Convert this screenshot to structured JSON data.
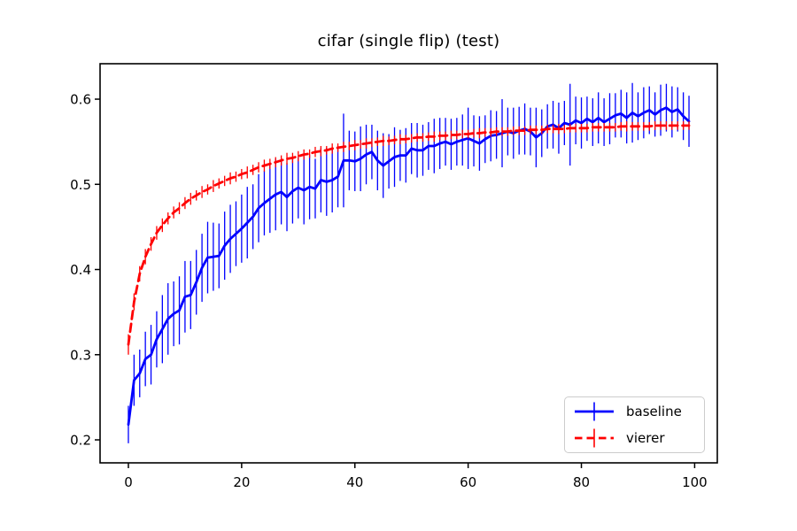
{
  "figure": {
    "title": "cifar (single flip) (test)",
    "background_color": "#ffffff"
  },
  "legend": {
    "position": "lower right",
    "items": [
      {
        "label": "baseline",
        "color": "#0000ff",
        "linestyle": "solid"
      },
      {
        "label": "vierer",
        "color": "#ff0000",
        "linestyle": "dashed"
      }
    ]
  },
  "chart_data": {
    "type": "line",
    "title": "cifar (single flip) (test)",
    "xlabel": "",
    "ylabel": "",
    "grid": false,
    "error_bars": true,
    "xlim": [
      -5,
      104
    ],
    "ylim": [
      0.173,
      0.6416
    ],
    "xticks": [
      0,
      20,
      40,
      60,
      80,
      100
    ],
    "xticklabels": [
      "0",
      "20",
      "40",
      "60",
      "80",
      "100"
    ],
    "yticks": [
      0.2,
      0.3,
      0.4,
      0.5,
      0.6
    ],
    "yticklabels": [
      "0.2",
      "0.3",
      "0.4",
      "0.5",
      "0.6"
    ],
    "x": [
      0,
      1,
      2,
      3,
      4,
      5,
      6,
      7,
      8,
      9,
      10,
      11,
      12,
      13,
      14,
      15,
      16,
      17,
      18,
      19,
      20,
      21,
      22,
      23,
      24,
      25,
      26,
      27,
      28,
      29,
      30,
      31,
      32,
      33,
      34,
      35,
      36,
      37,
      38,
      39,
      40,
      41,
      42,
      43,
      44,
      45,
      46,
      47,
      48,
      49,
      50,
      51,
      52,
      53,
      54,
      55,
      56,
      57,
      58,
      59,
      60,
      61,
      62,
      63,
      64,
      65,
      66,
      67,
      68,
      69,
      70,
      71,
      72,
      73,
      74,
      75,
      76,
      77,
      78,
      79,
      80,
      81,
      82,
      83,
      84,
      85,
      86,
      87,
      88,
      89,
      90,
      91,
      92,
      93,
      94,
      95,
      96,
      97,
      98,
      99
    ],
    "series": [
      {
        "name": "baseline",
        "color": "#0000ff",
        "linestyle": "solid",
        "values": [
          0.218,
          0.27,
          0.278,
          0.295,
          0.3,
          0.318,
          0.33,
          0.342,
          0.348,
          0.352,
          0.368,
          0.37,
          0.385,
          0.402,
          0.414,
          0.415,
          0.416,
          0.428,
          0.436,
          0.442,
          0.448,
          0.455,
          0.462,
          0.472,
          0.478,
          0.483,
          0.488,
          0.491,
          0.485,
          0.492,
          0.496,
          0.493,
          0.497,
          0.495,
          0.505,
          0.503,
          0.505,
          0.509,
          0.528,
          0.528,
          0.527,
          0.53,
          0.535,
          0.538,
          0.528,
          0.522,
          0.527,
          0.532,
          0.534,
          0.534,
          0.542,
          0.54,
          0.54,
          0.545,
          0.545,
          0.548,
          0.55,
          0.547,
          0.55,
          0.552,
          0.554,
          0.551,
          0.548,
          0.553,
          0.557,
          0.558,
          0.56,
          0.562,
          0.56,
          0.563,
          0.565,
          0.562,
          0.555,
          0.56,
          0.568,
          0.57,
          0.566,
          0.572,
          0.57,
          0.575,
          0.572,
          0.577,
          0.573,
          0.578,
          0.573,
          0.577,
          0.581,
          0.583,
          0.578,
          0.584,
          0.58,
          0.584,
          0.587,
          0.582,
          0.587,
          0.59,
          0.585,
          0.588,
          0.58,
          0.574
        ],
        "yerr": [
          0.022,
          0.03,
          0.028,
          0.032,
          0.035,
          0.033,
          0.04,
          0.042,
          0.038,
          0.04,
          0.042,
          0.04,
          0.038,
          0.04,
          0.042,
          0.04,
          0.038,
          0.04,
          0.04,
          0.038,
          0.04,
          0.042,
          0.038,
          0.04,
          0.038,
          0.04,
          0.042,
          0.038,
          0.04,
          0.038,
          0.036,
          0.04,
          0.038,
          0.035,
          0.038,
          0.04,
          0.038,
          0.036,
          0.055,
          0.035,
          0.035,
          0.038,
          0.035,
          0.032,
          0.035,
          0.038,
          0.032,
          0.035,
          0.03,
          0.032,
          0.03,
          0.032,
          0.03,
          0.028,
          0.032,
          0.03,
          0.028,
          0.03,
          0.028,
          0.03,
          0.036,
          0.03,
          0.032,
          0.028,
          0.03,
          0.028,
          0.04,
          0.028,
          0.03,
          0.028,
          0.03,
          0.028,
          0.035,
          0.028,
          0.026,
          0.028,
          0.03,
          0.026,
          0.048,
          0.028,
          0.03,
          0.026,
          0.028,
          0.03,
          0.028,
          0.03,
          0.026,
          0.028,
          0.03,
          0.035,
          0.028,
          0.03,
          0.028,
          0.026,
          0.03,
          0.028,
          0.03,
          0.026,
          0.028,
          0.03
        ]
      },
      {
        "name": "vierer",
        "color": "#ff0000",
        "linestyle": "dashed",
        "values": [
          0.312,
          0.362,
          0.395,
          0.415,
          0.43,
          0.443,
          0.452,
          0.46,
          0.467,
          0.472,
          0.478,
          0.483,
          0.487,
          0.491,
          0.494,
          0.498,
          0.501,
          0.504,
          0.507,
          0.509,
          0.512,
          0.514,
          0.517,
          0.52,
          0.522,
          0.524,
          0.526,
          0.528,
          0.53,
          0.531,
          0.533,
          0.535,
          0.536,
          0.538,
          0.539,
          0.54,
          0.542,
          0.543,
          0.544,
          0.545,
          0.546,
          0.547,
          0.548,
          0.549,
          0.55,
          0.551,
          0.551,
          0.552,
          0.553,
          0.553,
          0.554,
          0.555,
          0.555,
          0.556,
          0.556,
          0.557,
          0.557,
          0.558,
          0.558,
          0.559,
          0.559,
          0.56,
          0.56,
          0.561,
          0.561,
          0.562,
          0.562,
          0.562,
          0.563,
          0.563,
          0.563,
          0.564,
          0.564,
          0.564,
          0.565,
          0.565,
          0.565,
          0.565,
          0.566,
          0.566,
          0.566,
          0.566,
          0.567,
          0.567,
          0.567,
          0.567,
          0.567,
          0.568,
          0.568,
          0.568,
          0.568,
          0.568,
          0.568,
          0.569,
          0.569,
          0.569,
          0.569,
          0.569,
          0.569,
          0.569
        ],
        "yerr": [
          0.012,
          0.01,
          0.009,
          0.009,
          0.008,
          0.008,
          0.008,
          0.007,
          0.007,
          0.007,
          0.007,
          0.007,
          0.006,
          0.007,
          0.006,
          0.007,
          0.006,
          0.006,
          0.007,
          0.006,
          0.006,
          0.007,
          0.006,
          0.006,
          0.007,
          0.006,
          0.006,
          0.006,
          0.007,
          0.006,
          0.006,
          0.006,
          0.005,
          0.006,
          0.006,
          0.005,
          0.006,
          0.005,
          0.006,
          0.005,
          0.006,
          0.005,
          0.006,
          0.005,
          0.005,
          0.006,
          0.005,
          0.005,
          0.006,
          0.005,
          0.005,
          0.005,
          0.005,
          0.005,
          0.006,
          0.005,
          0.005,
          0.005,
          0.005,
          0.005,
          0.005,
          0.005,
          0.006,
          0.005,
          0.005,
          0.005,
          0.005,
          0.005,
          0.005,
          0.005,
          0.005,
          0.005,
          0.005,
          0.005,
          0.005,
          0.005,
          0.006,
          0.005,
          0.005,
          0.005,
          0.005,
          0.005,
          0.005,
          0.005,
          0.005,
          0.005,
          0.005,
          0.005,
          0.006,
          0.005,
          0.005,
          0.005,
          0.005,
          0.005,
          0.005,
          0.005,
          0.005,
          0.005,
          0.005,
          0.005
        ]
      }
    ]
  }
}
